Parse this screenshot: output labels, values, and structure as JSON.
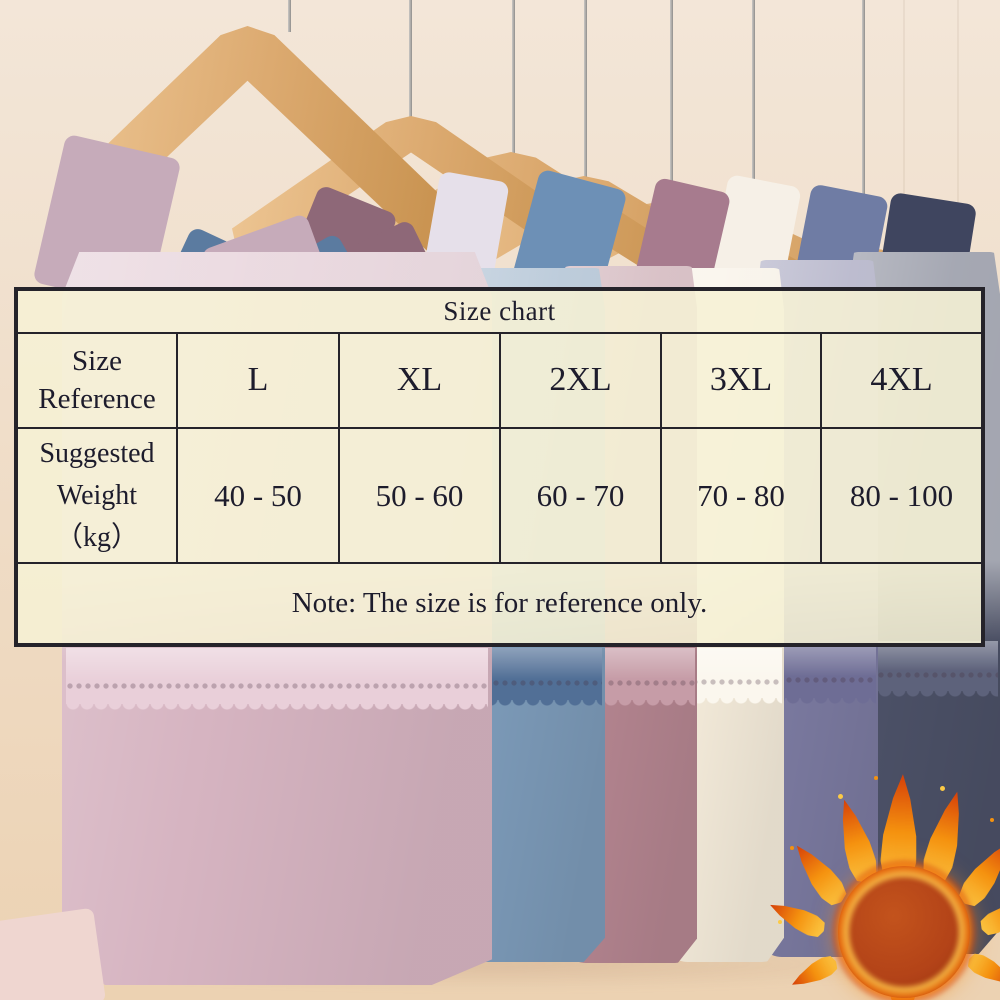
{
  "size_chart": {
    "title": "Size chart",
    "size_label_lines": [
      "Size",
      "Reference"
    ],
    "sizes": [
      "L",
      "XL",
      "2XL",
      "3XL",
      "4XL"
    ],
    "weight_label_lines": [
      "Suggested",
      "Weight",
      "（kg）"
    ],
    "weights": [
      "40 - 50",
      "50 - 60",
      "60 - 70",
      "70 - 80",
      "80 - 100"
    ],
    "note": "Note: The size is for reference only."
  },
  "chart_data": {
    "type": "table",
    "title": "Size chart",
    "columns": [
      "Size Reference",
      "L",
      "XL",
      "2XL",
      "3XL",
      "4XL"
    ],
    "rows": [
      [
        "Suggested Weight (kg)",
        "40 - 50",
        "50 - 60",
        "60 - 70",
        "70 - 80",
        "80 - 100"
      ]
    ],
    "note": "Note: The size is for reference only."
  },
  "icons": {
    "flame-icon": "fireball made of CSS radial gradients and flame tongues, thermal/warm product indicator"
  },
  "colors": {
    "bg-top": "#f3e6d8",
    "bg-mid": "#efdcc6",
    "bg-floor": "#ecd2b2",
    "wood": "#dcaa70",
    "wood-dark": "#c8924f",
    "wood-light": "#eec795",
    "rod": "#aaa8a5",
    "table-fill": "rgba(246,241,213,0.87)",
    "table-border": "#25232a",
    "table-text": "#1d1c2c",
    "garment-pink": "#d6b4c1",
    "lace-pink": "#e9cfd9",
    "garment-blue": "#7b99b7",
    "lace-blue": "#516f96",
    "garment-mauve": "#b3848f",
    "lace-mauve": "#c69ca7",
    "garment-ivory": "#f3ead9",
    "lace-ivory": "#fbf7ee",
    "garment-slate": "#7a799f",
    "lace-slate": "#6e6d95",
    "garment-navy": "#4b5066",
    "lace-navy": "#5d627b",
    "strap-pink": "#c6abba",
    "strap-blue": "#5b7ba0",
    "strap-mauve": "#8e6878",
    "strap-lav": "#e6e0ea",
    "strap-steel": "#6d90b6",
    "strap-rose": "#a77b8e",
    "strap-white": "#f6f0e7",
    "strap-slate": "#6f7ca4",
    "strap-navy": "#3f455f",
    "corner-pink": "#efd6d0",
    "flame-ball": "#b34318",
    "flame-orange": "#f5920f",
    "flame-yellow": "#fcca45",
    "flame-red": "#d64009"
  }
}
